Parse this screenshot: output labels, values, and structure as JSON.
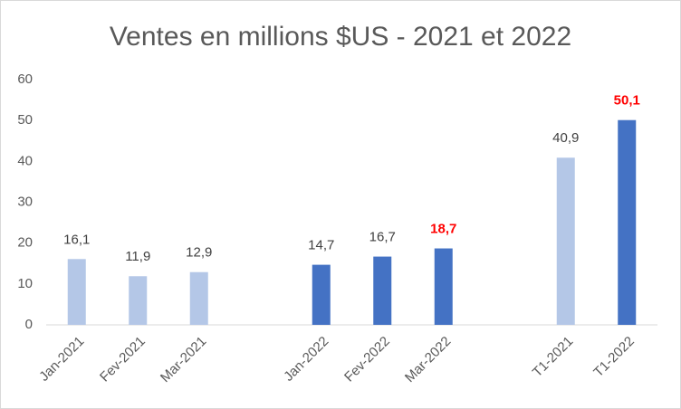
{
  "chart_data": {
    "type": "bar",
    "title": "Ventes en millions $US - 2021 et 2022",
    "categories": [
      "Jan-2021",
      "Fev-2021",
      "Mar-2021",
      null,
      "Jan-2022",
      "Fev-2022",
      "Mar-2022",
      null,
      "T1-2021",
      "T1-2022"
    ],
    "values": [
      16.1,
      11.9,
      12.9,
      null,
      14.7,
      16.7,
      18.7,
      null,
      40.9,
      50.1
    ],
    "value_labels": [
      "16,1",
      "11,9",
      "12,9",
      null,
      "14,7",
      "16,7",
      "18,7",
      null,
      "40,9",
      "50,1"
    ],
    "colors": [
      "#b4c7e7",
      "#b4c7e7",
      "#b4c7e7",
      null,
      "#4472c4",
      "#4472c4",
      "#4472c4",
      null,
      "#b4c7e7",
      "#4472c4"
    ],
    "label_colors": [
      "#404040",
      "#404040",
      "#404040",
      null,
      "#404040",
      "#404040",
      "#ff0000",
      null,
      "#404040",
      "#ff0000"
    ],
    "ylim": [
      0,
      60
    ],
    "yticks": [
      0,
      10,
      20,
      30,
      40,
      50,
      60
    ],
    "grid": false
  }
}
